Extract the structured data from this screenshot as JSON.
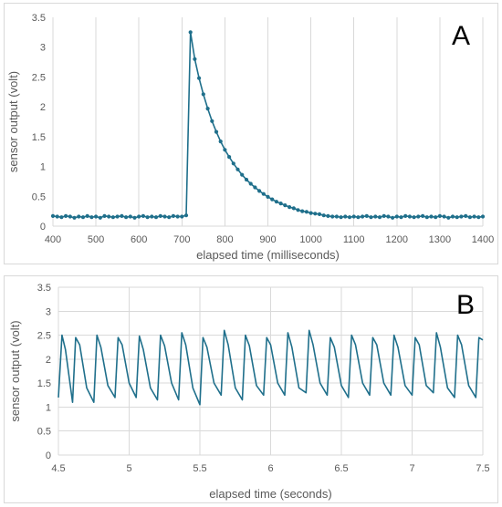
{
  "chart_data": [
    {
      "type": "line",
      "panel_label": "A",
      "xlabel": "elapsed time (milliseconds)",
      "ylabel": "sensor output (volt)",
      "xlim": [
        400,
        1400
      ],
      "ylim": [
        0,
        3.5
      ],
      "x_ticks": [
        "400",
        "500",
        "600",
        "700",
        "800",
        "900",
        "1000",
        "1100",
        "1200",
        "1300",
        "1400"
      ],
      "y_ticks": [
        "0",
        "0.5",
        "1",
        "1.5",
        "2",
        "2.5",
        "3",
        "3.5"
      ],
      "grid": "vertical",
      "markers": true,
      "color": "#1f6f8b",
      "series": [
        {
          "x": [
            400,
            410,
            420,
            430,
            440,
            450,
            460,
            470,
            480,
            490,
            500,
            510,
            520,
            530,
            540,
            550,
            560,
            570,
            580,
            590,
            600,
            610,
            620,
            630,
            640,
            650,
            660,
            670,
            680,
            690,
            700,
            710,
            720,
            730,
            740,
            750,
            760,
            770,
            780,
            790,
            800,
            810,
            820,
            830,
            840,
            850,
            860,
            870,
            880,
            890,
            900,
            910,
            920,
            930,
            940,
            950,
            960,
            970,
            980,
            990,
            1000,
            1010,
            1020,
            1030,
            1040,
            1050,
            1060,
            1070,
            1080,
            1090,
            1100,
            1110,
            1120,
            1130,
            1140,
            1150,
            1160,
            1170,
            1180,
            1190,
            1200,
            1210,
            1220,
            1230,
            1240,
            1250,
            1260,
            1270,
            1280,
            1290,
            1300,
            1310,
            1320,
            1330,
            1340,
            1350,
            1360,
            1370,
            1380,
            1390,
            1400
          ],
          "y": [
            0.17,
            0.16,
            0.15,
            0.17,
            0.16,
            0.14,
            0.16,
            0.15,
            0.17,
            0.15,
            0.16,
            0.14,
            0.17,
            0.16,
            0.15,
            0.16,
            0.17,
            0.15,
            0.16,
            0.14,
            0.16,
            0.17,
            0.15,
            0.16,
            0.15,
            0.17,
            0.16,
            0.15,
            0.17,
            0.16,
            0.16,
            0.18,
            3.25,
            2.8,
            2.48,
            2.21,
            1.97,
            1.76,
            1.58,
            1.42,
            1.28,
            1.16,
            1.05,
            0.95,
            0.86,
            0.78,
            0.71,
            0.65,
            0.59,
            0.54,
            0.49,
            0.45,
            0.41,
            0.38,
            0.35,
            0.32,
            0.3,
            0.27,
            0.25,
            0.24,
            0.22,
            0.21,
            0.2,
            0.18,
            0.17,
            0.16,
            0.16,
            0.15,
            0.16,
            0.15,
            0.16,
            0.15,
            0.16,
            0.17,
            0.15,
            0.16,
            0.15,
            0.17,
            0.16,
            0.14,
            0.16,
            0.15,
            0.17,
            0.16,
            0.15,
            0.16,
            0.17,
            0.15,
            0.16,
            0.15,
            0.17,
            0.16,
            0.14,
            0.16,
            0.15,
            0.16,
            0.17,
            0.15,
            0.16,
            0.15,
            0.16
          ]
        }
      ]
    },
    {
      "type": "line",
      "panel_label": "B",
      "xlabel": "elapsed time (seconds)",
      "ylabel": "sensor output (volt)",
      "xlim": [
        4.5,
        7.5
      ],
      "ylim": [
        0,
        3.5
      ],
      "x_ticks": [
        "4.5",
        "5",
        "5.5",
        "6",
        "6.5",
        "7",
        "7.5"
      ],
      "y_ticks": [
        "0",
        "0.5",
        "1",
        "1.5",
        "2",
        "2.5",
        "3",
        "3.5"
      ],
      "grid": "both",
      "markers": false,
      "color": "#1f6f8b",
      "series": [
        {
          "x": [
            4.5,
            4.525,
            4.55,
            4.6,
            4.622,
            4.65,
            4.7,
            4.75,
            4.772,
            4.8,
            4.85,
            4.9,
            4.922,
            4.95,
            5.0,
            5.05,
            5.072,
            5.1,
            5.15,
            5.2,
            5.222,
            5.25,
            5.3,
            5.35,
            5.372,
            5.4,
            5.45,
            5.5,
            5.522,
            5.55,
            5.6,
            5.65,
            5.672,
            5.7,
            5.75,
            5.8,
            5.822,
            5.85,
            5.9,
            5.95,
            5.972,
            6.0,
            6.05,
            6.1,
            6.122,
            6.15,
            6.2,
            6.25,
            6.272,
            6.3,
            6.35,
            6.4,
            6.422,
            6.45,
            6.5,
            6.55,
            6.572,
            6.6,
            6.65,
            6.7,
            6.722,
            6.75,
            6.8,
            6.85,
            6.872,
            6.9,
            6.95,
            7.0,
            7.022,
            7.05,
            7.1,
            7.15,
            7.172,
            7.2,
            7.25,
            7.3,
            7.322,
            7.35,
            7.4,
            7.45,
            7.472,
            7.5
          ],
          "y": [
            1.2,
            2.5,
            2.2,
            1.1,
            2.45,
            2.3,
            1.4,
            1.1,
            2.5,
            2.25,
            1.45,
            1.2,
            2.45,
            2.3,
            1.5,
            1.2,
            2.48,
            2.2,
            1.4,
            1.15,
            2.5,
            2.28,
            1.5,
            1.15,
            2.55,
            2.3,
            1.4,
            1.05,
            2.45,
            2.25,
            1.5,
            1.25,
            2.6,
            2.3,
            1.4,
            1.15,
            2.5,
            2.28,
            1.45,
            1.25,
            2.45,
            2.3,
            1.5,
            1.25,
            2.55,
            2.25,
            1.4,
            1.3,
            2.6,
            2.3,
            1.5,
            1.25,
            2.45,
            2.25,
            1.45,
            1.2,
            2.5,
            2.3,
            1.5,
            1.25,
            2.45,
            2.3,
            1.5,
            1.25,
            2.5,
            2.25,
            1.45,
            1.25,
            2.45,
            2.3,
            1.45,
            1.3,
            2.55,
            2.25,
            1.4,
            1.2,
            2.5,
            2.3,
            1.45,
            1.2,
            2.45,
            2.4
          ]
        }
      ]
    }
  ]
}
